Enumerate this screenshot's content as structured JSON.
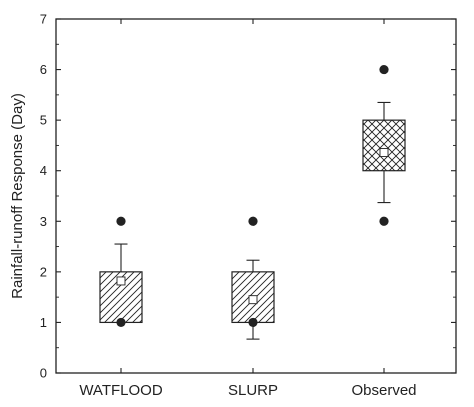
{
  "chart_data": {
    "type": "box",
    "title": "",
    "xlabel": "",
    "ylabel": "Rainfall-runoff Response (Day)",
    "ylim": [
      0,
      7
    ],
    "yticks": [
      "0",
      "1",
      "2",
      "3",
      "4",
      "5",
      "6",
      "7"
    ],
    "categories": [
      "WATFLOOD",
      "SLURP",
      "Observed"
    ],
    "boxes": [
      {
        "category": "WATFLOOD",
        "q1": 1,
        "q3": 2,
        "mean": 1.82,
        "whisker_low": 1,
        "whisker_high": 2.55,
        "min": 1,
        "max": 3,
        "pattern": "diagonal"
      },
      {
        "category": "SLURP",
        "q1": 1,
        "q3": 2,
        "mean": 1.45,
        "whisker_low": 0.67,
        "whisker_high": 2.23,
        "min": 1,
        "max": 3,
        "pattern": "diagonal"
      },
      {
        "category": "Observed",
        "q1": 4,
        "q3": 5,
        "mean": 4.36,
        "whisker_low": 3.37,
        "whisker_high": 5.35,
        "min": 3,
        "max": 6,
        "pattern": "crosshatch"
      }
    ],
    "grid": false,
    "colors": {
      "axis": "#222222",
      "box_fill": "#ffffff",
      "marker": "#222222"
    }
  }
}
